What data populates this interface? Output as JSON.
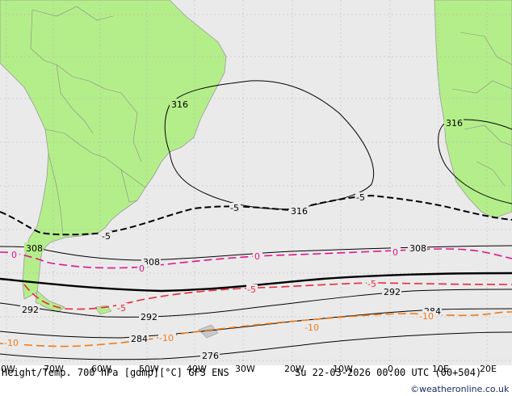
{
  "map": {
    "title": "Height/Temp. 700 hPa [gdmp][°C] GFS ENS",
    "valid_time": "Su 22-03-2026 00:00 UTC (00+504)",
    "credit": "©weatheronline.co.uk",
    "colors": {
      "ocean": "#eaeaea",
      "land": "#b4ee8a",
      "coast": "#9a9a9a",
      "grid": "#b0b0b0",
      "height_contour": "#000000",
      "temp_zero": "#e0168a",
      "temp_minus5": "#e8283a",
      "temp_minus10": "#f07a18"
    },
    "lon_labels": [
      "80W",
      "70W",
      "60W",
      "50W",
      "40W",
      "30W",
      "20W",
      "10W",
      "0",
      "10E",
      "20E"
    ],
    "height_labels": {
      "l316a": "316",
      "l316b": "316",
      "l316c": "316",
      "l308a": "308",
      "l308b": "308",
      "l308c": "308",
      "l292a": "292",
      "l292b": "292",
      "l292c": "292",
      "l284a": "284",
      "l284b": "284",
      "l276": "276"
    },
    "temp_labels": {
      "t5a": "-5",
      "t5b": "-5",
      "t5c": "-5",
      "t0a": "0",
      "t0b": "0",
      "t0c": "0",
      "t0d": "0",
      "tr5a": "-5",
      "tr5b": "-5",
      "tr5c": "-5",
      "t10a": "-10",
      "t10b": "-10",
      "t10c": "-10",
      "t10d": "-10"
    }
  }
}
